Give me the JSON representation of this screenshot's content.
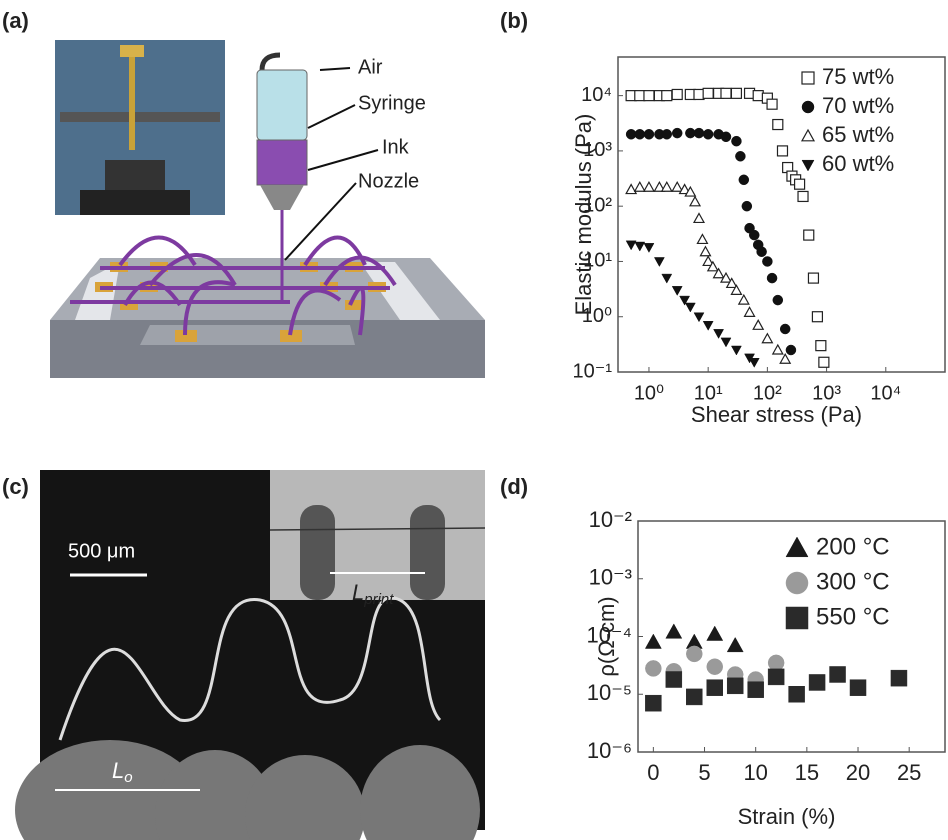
{
  "panels": {
    "a": {
      "label": "(a)",
      "callouts": [
        "Air",
        "Syringe",
        "Ink",
        "Nozzle"
      ]
    },
    "c": {
      "label": "(c)",
      "scale_bar": "500 μm",
      "length_print": {
        "main": "L",
        "sub": "print"
      },
      "length_0": {
        "main": "L",
        "sub": "o"
      }
    }
  },
  "chart_data": [
    {
      "type": "scatter",
      "panel_label": "(b)",
      "x_label": "Shear stress (Pa)",
      "y_label": "Elastic modulus (Pa)",
      "xscale": "log",
      "yscale": "log",
      "xlim": [
        0.3,
        100000
      ],
      "ylim": [
        0.1,
        50000
      ],
      "xticks": [
        {
          "value": 1,
          "label": "10⁰"
        },
        {
          "value": 10,
          "label": "10¹"
        },
        {
          "value": 100,
          "label": "10²"
        },
        {
          "value": 1000,
          "label": "10³"
        },
        {
          "value": 10000,
          "label": "10⁴"
        }
      ],
      "yticks": [
        {
          "value": 0.1,
          "label": "10⁻¹"
        },
        {
          "value": 1,
          "label": "10⁰"
        },
        {
          "value": 10,
          "label": "10¹"
        },
        {
          "value": 100,
          "label": "10²"
        },
        {
          "value": 1000,
          "label": "10³"
        },
        {
          "value": 10000,
          "label": "10⁴"
        }
      ],
      "legend": "upper right",
      "series": [
        {
          "name": "75 wt%",
          "marker": "square-open",
          "color": "#222222",
          "x": [
            0.5,
            0.7,
            1,
            1.5,
            2,
            3,
            5,
            7,
            10,
            15,
            20,
            30,
            50,
            70,
            100,
            120,
            150,
            180,
            220,
            260,
            300,
            350,
            400,
            500,
            600,
            700,
            800,
            900
          ],
          "y": [
            10000,
            10000,
            10000,
            10000,
            10000,
            10500,
            10500,
            10500,
            11000,
            11000,
            11000,
            11000,
            11000,
            10000,
            9000,
            7000,
            3000,
            1000,
            500,
            350,
            300,
            250,
            150,
            30,
            5,
            1,
            0.3,
            0.15
          ]
        },
        {
          "name": "70 wt%",
          "marker": "circle",
          "color": "#111111",
          "x": [
            0.5,
            0.7,
            1,
            1.5,
            2,
            3,
            5,
            7,
            10,
            15,
            20,
            30,
            35,
            40,
            45,
            50,
            60,
            70,
            80,
            100,
            120,
            150,
            200,
            250
          ],
          "y": [
            2000,
            2000,
            2000,
            2000,
            2000,
            2100,
            2100,
            2100,
            2000,
            2000,
            1800,
            1500,
            800,
            300,
            100,
            40,
            30,
            20,
            15,
            10,
            5,
            2,
            0.6,
            0.25
          ]
        },
        {
          "name": "65 wt%",
          "marker": "triangle-open",
          "color": "#222222",
          "x": [
            0.5,
            0.7,
            1,
            1.5,
            2,
            3,
            4,
            5,
            6,
            7,
            8,
            9,
            10,
            12,
            15,
            20,
            25,
            30,
            40,
            50,
            70,
            100,
            150,
            200
          ],
          "y": [
            200,
            220,
            220,
            220,
            220,
            220,
            200,
            180,
            120,
            60,
            25,
            15,
            10,
            8,
            6,
            5,
            4,
            3,
            2,
            1.2,
            0.7,
            0.4,
            0.25,
            0.17
          ]
        },
        {
          "name": "60 wt%",
          "marker": "triangle-down",
          "color": "#111111",
          "x": [
            0.5,
            0.7,
            1,
            1.5,
            2,
            3,
            4,
            5,
            7,
            10,
            15,
            20,
            30,
            50,
            60
          ],
          "y": [
            20,
            19,
            18,
            10,
            5,
            3,
            2,
            1.5,
            1,
            0.7,
            0.5,
            0.35,
            0.25,
            0.18,
            0.15
          ]
        }
      ]
    },
    {
      "type": "scatter",
      "panel_label": "(d)",
      "x_label": "Strain (%)",
      "y_label": "ρ(Ω-cm)",
      "xscale": "linear",
      "yscale": "log",
      "xlim": [
        -1.5,
        28.5
      ],
      "ylim": [
        1e-06,
        0.01
      ],
      "xticks": [
        0,
        5,
        10,
        15,
        20,
        25
      ],
      "yticks": [
        {
          "value": 0.01,
          "label": "10⁻²"
        },
        {
          "value": 0.001,
          "label": "10⁻³"
        },
        {
          "value": 0.0001,
          "label": "10⁻⁴"
        },
        {
          "value": 1e-05,
          "label": "10⁻⁵"
        },
        {
          "value": 1e-06,
          "label": "10⁻⁶"
        }
      ],
      "legend": "upper right",
      "series": [
        {
          "name": "200 °C",
          "marker": "triangle",
          "color": "#1a1a1a",
          "x": [
            0,
            2,
            4,
            6,
            8
          ],
          "y": [
            8e-05,
            0.00012,
            8e-05,
            0.00011,
            7e-05
          ]
        },
        {
          "name": "300 °C",
          "marker": "circle",
          "color": "#9a9a9a",
          "x": [
            0,
            2,
            4,
            6,
            8,
            10,
            12
          ],
          "y": [
            2.8e-05,
            2.5e-05,
            5e-05,
            3e-05,
            2.2e-05,
            1.8e-05,
            3.5e-05
          ]
        },
        {
          "name": "550 °C",
          "marker": "square",
          "color": "#2a2a2a",
          "x": [
            0,
            2,
            4,
            6,
            8,
            10,
            12,
            14,
            16,
            18,
            20,
            24
          ],
          "y": [
            7e-06,
            1.8e-05,
            9e-06,
            1.3e-05,
            1.4e-05,
            1.2e-05,
            2e-05,
            1e-05,
            1.6e-05,
            2.2e-05,
            1.3e-05,
            1.9e-05
          ]
        }
      ]
    }
  ]
}
